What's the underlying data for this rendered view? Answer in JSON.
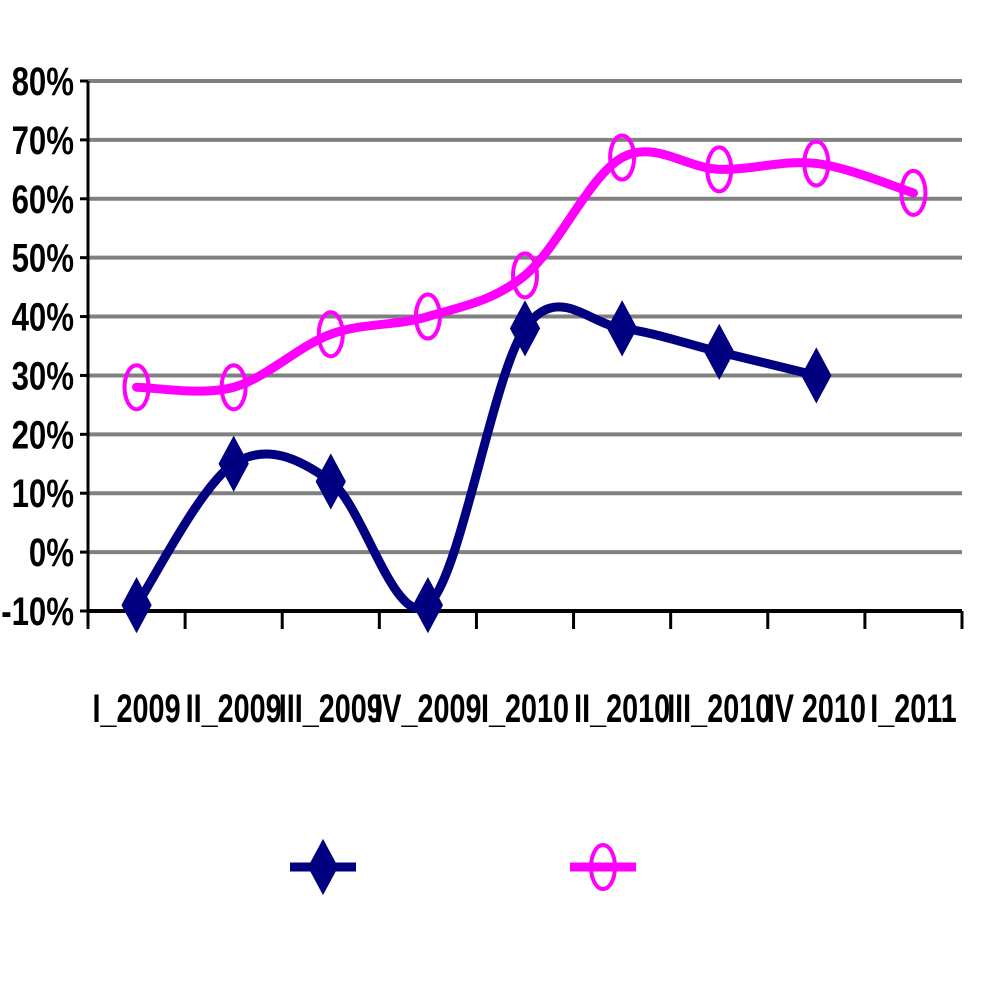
{
  "chart_data": {
    "type": "line",
    "title": "",
    "xlabel": "",
    "ylabel": "",
    "categories": [
      "I_2009",
      "II_2009",
      "III_2009",
      "IV_2009",
      "I_2010",
      "II_2010",
      "III_2010",
      "IV 2010",
      "I_2011"
    ],
    "y_ticks": [
      "80%",
      "70%",
      "60%",
      "50%",
      "40%",
      "30%",
      "20%",
      "10%",
      "0%",
      "-10%"
    ],
    "ylim": [
      -10,
      80
    ],
    "y_unit": "%",
    "grid": true,
    "legend_position": "bottom",
    "smooth": true,
    "series": [
      {
        "values": [
          -9,
          15,
          12,
          -9,
          38,
          38,
          34,
          30,
          null
        ],
        "color": "#000080",
        "marker": "diamond"
      },
      {
        "values": [
          28,
          28,
          37,
          40,
          47,
          67,
          65,
          66,
          61
        ],
        "color": "#ff00ff",
        "marker": "circle"
      }
    ]
  }
}
